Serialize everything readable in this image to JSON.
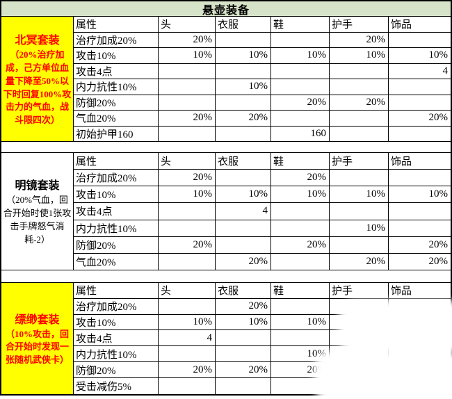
{
  "title": "悬壶装备",
  "colors": {
    "title_bg": "#d7e3c8",
    "highlight_bg": "#ffff00",
    "highlight_text": "#ff0000",
    "border": "#000000"
  },
  "columns": [
    "属性",
    "头",
    "衣服",
    "鞋",
    "护手",
    "饰品"
  ],
  "sections": [
    {
      "set_name": "北冥套装",
      "set_desc": "（20%治疗加成，己方单位血量下降至50%以下时回复100%攻击力的气血，战斗限四次）",
      "rows": [
        {
          "attr": "治疗加成20%",
          "values": [
            "20%",
            "",
            "",
            "20%",
            ""
          ]
        },
        {
          "attr": "攻击10%",
          "values": [
            "10%",
            "10%",
            "10%",
            "10%",
            "10%"
          ]
        },
        {
          "attr": "攻击4点",
          "values": [
            "",
            "",
            "",
            "",
            "4"
          ]
        },
        {
          "attr": "内力抗性10%",
          "values": [
            "",
            "10%",
            "",
            "",
            ""
          ]
        },
        {
          "attr": "防御20%",
          "values": [
            "",
            "",
            "20%",
            "20%",
            ""
          ]
        },
        {
          "attr": "气血20%",
          "values": [
            "20%",
            "20%",
            "",
            "",
            "20%"
          ]
        },
        {
          "attr": "初始护甲160",
          "values": [
            "",
            "",
            "160",
            "",
            ""
          ]
        }
      ]
    },
    {
      "set_name": "明镜套装",
      "set_desc": "（20%气血，回合开始时使1张攻击手牌怒气消耗-2）",
      "rows": [
        {
          "attr": "治疗加成20%",
          "values": [
            "20%",
            "",
            "20%",
            "",
            ""
          ]
        },
        {
          "attr": "攻击10%",
          "values": [
            "10%",
            "10%",
            "10%",
            "10%",
            "10%"
          ]
        },
        {
          "attr": "攻击4点",
          "values": [
            "",
            "4",
            "",
            "",
            ""
          ]
        },
        {
          "attr": "内力抗性10%",
          "values": [
            "",
            "",
            "",
            "10%",
            ""
          ]
        },
        {
          "attr": "防御20%",
          "values": [
            "20%",
            "",
            "20%",
            "",
            "20%"
          ]
        },
        {
          "attr": "气血20%",
          "values": [
            "",
            "20%",
            "",
            "20%",
            "20%"
          ]
        }
      ]
    },
    {
      "set_name": "缥缈套装",
      "set_desc": "（10%攻击，回合开始时发现一张随机武侠卡）",
      "rows": [
        {
          "attr": "治疗加成20%",
          "values": [
            "",
            "20%",
            "",
            "",
            ""
          ]
        },
        {
          "attr": "攻击10%",
          "values": [
            "10%",
            "10%",
            "10%",
            "",
            ""
          ]
        },
        {
          "attr": "攻击4点",
          "values": [
            "4",
            "",
            "",
            "",
            ""
          ]
        },
        {
          "attr": "内力抗性10%",
          "values": [
            "",
            "",
            "10%",
            "",
            ""
          ]
        },
        {
          "attr": "防御20%",
          "values": [
            "20%",
            "20%",
            "20%",
            "",
            ""
          ]
        },
        {
          "attr": "受击减伤5%",
          "values": [
            "",
            "",
            "",
            "",
            ""
          ]
        }
      ]
    }
  ]
}
